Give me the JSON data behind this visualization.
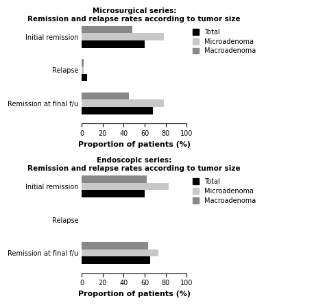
{
  "micro_title": "Microsurgical series:\nRemission and relapse rates according to tumor size",
  "endo_title": "Endoscopic series:\nRemission and relapse rates according to tumor size",
  "categories": [
    "Initial remission",
    "Relapse",
    "Remission at final f/u"
  ],
  "xlabel": "Proportion of patients (%)",
  "xlim": [
    0,
    100
  ],
  "xticks": [
    0,
    20,
    40,
    60,
    80,
    100
  ],
  "legend_labels": [
    "Total",
    "Microadenoma",
    "Macroadenoma"
  ],
  "colors": {
    "Total": "#000000",
    "Microadenoma": "#c8c8c8",
    "Macroadenoma": "#888888"
  },
  "micro_data": {
    "Total": [
      60,
      5,
      68
    ],
    "Microadenoma": [
      78,
      2,
      78
    ],
    "Macroadenoma": [
      48,
      2,
      45
    ]
  },
  "endo_data": {
    "Total": [
      60,
      0,
      65
    ],
    "Microadenoma": [
      83,
      0,
      73
    ],
    "Macroadenoma": [
      62,
      0,
      63
    ]
  },
  "bar_height": 0.22,
  "title_fontsize": 7.5,
  "label_fontsize": 7,
  "tick_fontsize": 7,
  "legend_fontsize": 7,
  "xlabel_fontsize": 8
}
